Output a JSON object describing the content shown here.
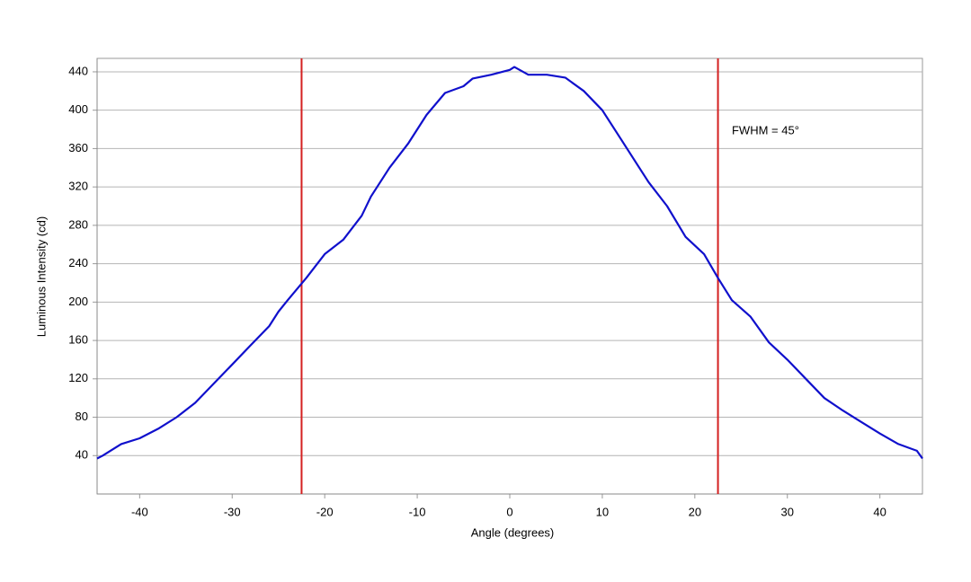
{
  "chart_data": {
    "type": "line",
    "x_label": "Angle (degrees)",
    "y_label": "Luminous Intensity (cd)",
    "x": [
      -44.6,
      -44,
      -42,
      -40,
      -38,
      -36,
      -34,
      -32,
      -30,
      -28,
      -26,
      -25,
      -24,
      -22,
      -20,
      -18,
      -16,
      -15,
      -13,
      -11,
      -9,
      -7,
      -5,
      -4,
      -2,
      0,
      0.5,
      2,
      4,
      6,
      8,
      10,
      12,
      14,
      15,
      17,
      19,
      21,
      22.5,
      24,
      26,
      28,
      30,
      32,
      34,
      36,
      38,
      40,
      42,
      44,
      44.6
    ],
    "series": [
      {
        "name": "Luminous Intensity",
        "color": "#1010cc",
        "values": [
          37,
          40,
          52,
          58,
          68,
          80,
          95,
          115,
          135,
          155,
          175,
          190,
          202,
          225,
          250,
          265,
          290,
          310,
          340,
          365,
          395,
          418,
          425,
          433,
          437,
          442,
          445,
          437,
          437,
          434,
          420,
          400,
          370,
          340,
          325,
          300,
          268,
          250,
          225,
          202,
          185,
          158,
          140,
          120,
          100,
          87,
          75,
          63,
          52,
          45,
          37
        ]
      }
    ],
    "vlines": [
      -22.5,
      22.5
    ],
    "vline_color": "#d42020",
    "annotation": "FWHM = 45°",
    "annotation_x": 24,
    "annotation_y": 378,
    "xlim": [
      -44.6,
      44.6
    ],
    "ylim": [
      0,
      454
    ],
    "xticks": [
      -40,
      -30,
      -20,
      -10,
      0,
      10,
      20,
      30,
      40
    ],
    "yticks": [
      40,
      80,
      120,
      160,
      200,
      240,
      280,
      320,
      360,
      400,
      440
    ],
    "grid": true
  }
}
